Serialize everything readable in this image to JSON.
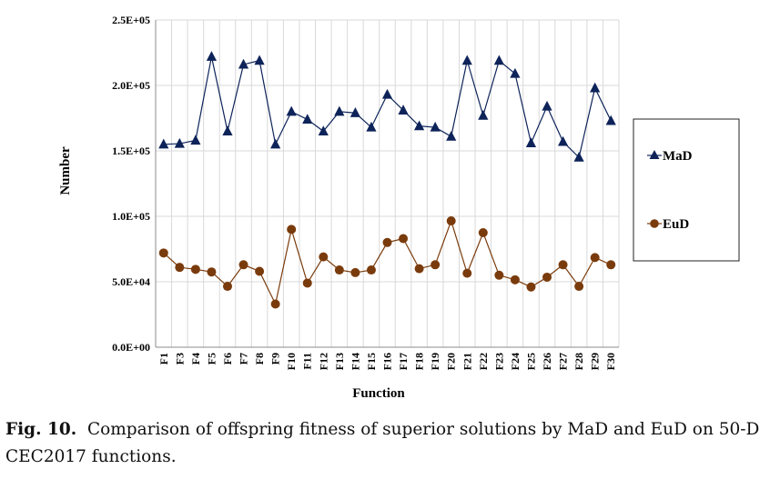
{
  "chart_data": {
    "type": "line",
    "title": "",
    "xlabel": "Function",
    "ylabel": "Number",
    "categories": [
      "F1",
      "F3",
      "F4",
      "F5",
      "F6",
      "F7",
      "F8",
      "F9",
      "F10",
      "F11",
      "F12",
      "F13",
      "F14",
      "F15",
      "F16",
      "F17",
      "F18",
      "F19",
      "F20",
      "F21",
      "F22",
      "F23",
      "F24",
      "F25",
      "F26",
      "F27",
      "F28",
      "F29",
      "F30"
    ],
    "ylim": [
      0,
      250000
    ],
    "yticks": [
      0,
      50000,
      100000,
      150000,
      200000,
      250000
    ],
    "ytick_labels": [
      "0.0E+00",
      "5.0E+04",
      "1.0E+05",
      "1.5E+05",
      "2.0E+05",
      "2.5E+05"
    ],
    "grid": true,
    "legend_position": "right",
    "series": [
      {
        "name": "MaD",
        "color": "#0d2359",
        "marker": "triangle",
        "values": [
          155000,
          155500,
          158000,
          222000,
          165000,
          216000,
          219000,
          155000,
          180000,
          174000,
          165000,
          180000,
          179000,
          168000,
          193000,
          181000,
          169000,
          168000,
          161000,
          219000,
          177000,
          219000,
          209000,
          156000,
          184000,
          157000,
          145000,
          198000,
          173000
        ]
      },
      {
        "name": "EuD",
        "color": "#7a3b0c",
        "marker": "circle",
        "values": [
          72000,
          61000,
          59500,
          57500,
          46500,
          63000,
          58000,
          33000,
          90000,
          49000,
          69000,
          59000,
          57000,
          59000,
          80000,
          83000,
          60000,
          63000,
          96500,
          56500,
          87500,
          55000,
          51500,
          46000,
          53500,
          63000,
          46500,
          68500,
          63000
        ]
      }
    ]
  },
  "caption": {
    "label": "Fig. 10.",
    "text": "Comparison of offspring fitness of superior solutions by MaD and EuD on 50-D CEC2017 functions."
  }
}
